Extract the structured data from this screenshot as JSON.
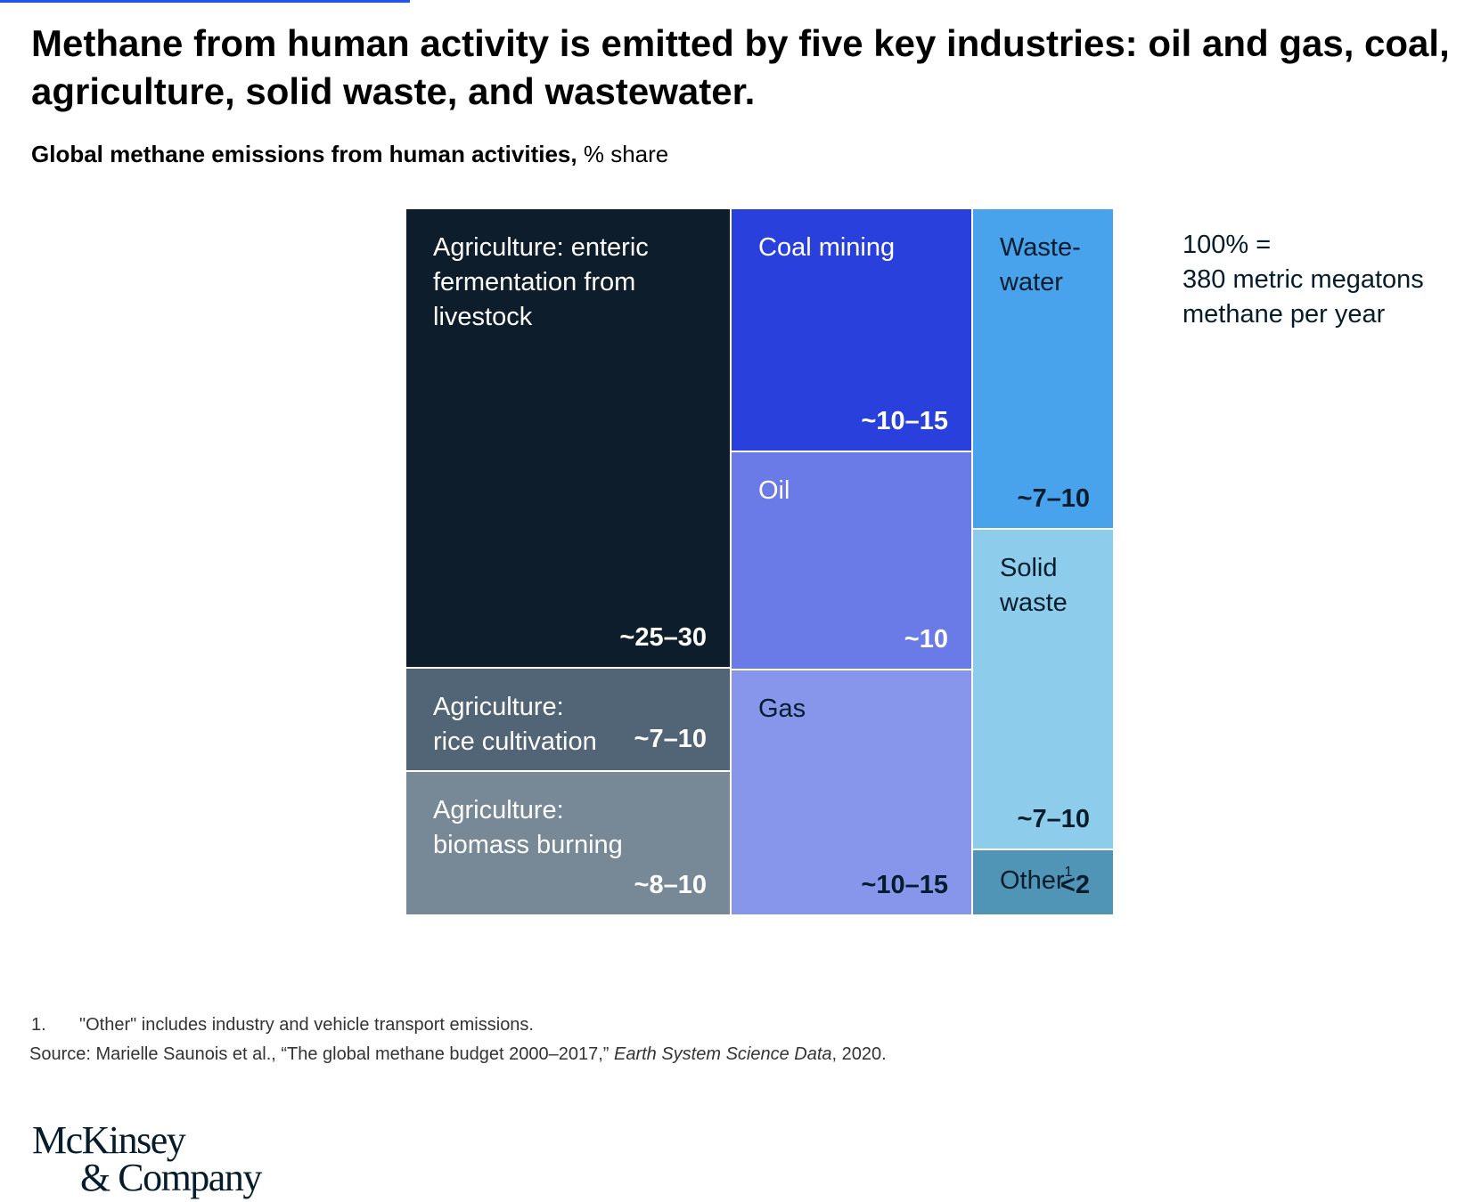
{
  "colors": {
    "accent_rule": "#2251ff",
    "enteric": "#0e1d2c",
    "rice": "#526576",
    "biomass": "#778896",
    "coal": "#2940dd",
    "oil": "#6a7ae6",
    "gas": "#8795ea",
    "wastewater": "#48a3ec",
    "solid_waste": "#8dcdeb",
    "other": "#5095b5"
  },
  "header": {
    "title": "Methane from human activity is emitted by five key industries: oil and gas, coal, agriculture, solid waste, and wastewater.",
    "subtitle_strong": "Global methane emissions from human activities,",
    "subtitle_unit": " % share"
  },
  "chart_data": {
    "type": "treemap",
    "unit": "% share",
    "total_note": "100% =\n380 metric megatons\nmethane per year",
    "cells": [
      {
        "id": "enteric",
        "label": "Agriculture: enteric\nfermentation from\nlivestock",
        "value_label": "~25–30",
        "range": [
          25,
          30
        ],
        "color": "#0e1d2c",
        "text_color": "#ffffff"
      },
      {
        "id": "rice",
        "label": "Agriculture:\nrice cultivation",
        "value_label": "~7–10",
        "range": [
          7,
          10
        ],
        "color": "#526576",
        "text_color": "#ffffff"
      },
      {
        "id": "biomass",
        "label": "Agriculture:\nbiomass burning",
        "value_label": "~8–10",
        "range": [
          8,
          10
        ],
        "color": "#778896",
        "text_color": "#ffffff"
      },
      {
        "id": "coal",
        "label": "Coal mining",
        "value_label": "~10–15",
        "range": [
          10,
          15
        ],
        "color": "#2940dd",
        "text_color": "#ffffff"
      },
      {
        "id": "oil",
        "label": "Oil",
        "value_label": "~10",
        "range": [
          10,
          10
        ],
        "color": "#6a7ae6",
        "text_color": "#ffffff"
      },
      {
        "id": "gas",
        "label": "Gas",
        "value_label": "~10–15",
        "range": [
          10,
          15
        ],
        "color": "#8795ea",
        "text_color": "#051c2c"
      },
      {
        "id": "wastewater",
        "label": "Waste-\nwater",
        "value_label": "~7–10",
        "range": [
          7,
          10
        ],
        "color": "#48a3ec",
        "text_color": "#051c2c"
      },
      {
        "id": "solid_waste",
        "label": "Solid\nwaste",
        "value_label": "~7–10",
        "range": [
          7,
          10
        ],
        "color": "#8dcdeb",
        "text_color": "#051c2c"
      },
      {
        "id": "other",
        "label": "Other",
        "label_sup": "1",
        "value_label": "<2",
        "range": [
          0,
          2
        ],
        "color": "#5095b5",
        "text_color": "#051c2c"
      }
    ]
  },
  "footnote": {
    "number": "1.",
    "text": "\"Other\" includes industry and vehicle transport emissions."
  },
  "source": {
    "prefix": "Source: Marielle Saunois et al., “The global methane budget 2000–2017,” ",
    "journal": "Earth System Science Data",
    "suffix": ", 2020."
  },
  "logo": {
    "line1": "McKinsey",
    "line2": "& Company"
  }
}
